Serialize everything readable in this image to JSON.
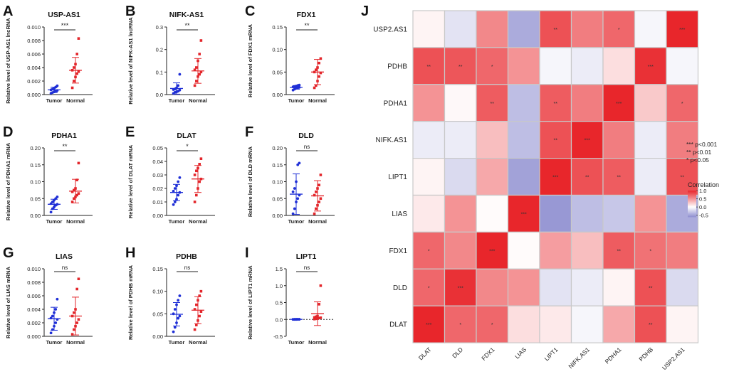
{
  "figure": {
    "scatter_panels": [
      {
        "letter": "A",
        "title": "USP-AS1",
        "ylabel": "Relative level of USP-AS1 lncRNA",
        "ticks": [
          "0.000",
          "0.002",
          "0.004",
          "0.006",
          "0.008",
          "0.010"
        ],
        "sig": "***"
      },
      {
        "letter": "B",
        "title": "NIFK-AS1",
        "ylabel": "Relative level of NIFK-AS1 lncRNA",
        "ticks": [
          "0.0",
          "0.1",
          "0.2",
          "0.3"
        ],
        "sig": "**"
      },
      {
        "letter": "C",
        "title": "FDX1",
        "ylabel": "Relative level of FDX1 mRNA",
        "ticks": [
          "0.00",
          "0.05",
          "0.10",
          "0.15"
        ],
        "sig": "**"
      },
      {
        "letter": "D",
        "title": "PDHA1",
        "ylabel": "Relative level of PDHA1 mRNA",
        "ticks": [
          "0.00",
          "0.05",
          "0.10",
          "0.15",
          "0.20"
        ],
        "sig": "**"
      },
      {
        "letter": "E",
        "title": "DLAT",
        "ylabel": "Relative level of DLAT mRNA",
        "ticks": [
          "0.00",
          "0.01",
          "0.02",
          "0.03",
          "0.04",
          "0.05"
        ],
        "sig": "*"
      },
      {
        "letter": "F",
        "title": "DLD",
        "ylabel": "Relative level of DLD mRNA",
        "ticks": [
          "0.00",
          "0.05",
          "0.10",
          "0.15",
          "0.20"
        ],
        "sig": "ns"
      },
      {
        "letter": "G",
        "title": "LIAS",
        "ylabel": "Relative level of LIAS mRNA",
        "ticks": [
          "0.000",
          "0.002",
          "0.004",
          "0.006",
          "0.008",
          "0.010"
        ],
        "sig": "ns"
      },
      {
        "letter": "H",
        "title": "PDHB",
        "ylabel": "Relative level of PDHB mRNA",
        "ticks": [
          "0.00",
          "0.05",
          "0.10",
          "0.15"
        ],
        "sig": "ns"
      },
      {
        "letter": "I",
        "title": "LIPT1",
        "ylabel": "Relative level of LIPT1 mRNA",
        "ticks": [
          "-0.5",
          "0.0",
          "0.5",
          "1.0",
          "1.5"
        ],
        "sig": "ns"
      }
    ],
    "group_labels": [
      "Tumor",
      "Normal"
    ],
    "heatmap_letter": "J",
    "sig_legend": [
      "*** p<0.001",
      "** p<0.01",
      "* p<0.05"
    ],
    "colorbar": {
      "title": "Correlation",
      "ticks": [
        "1.0",
        "0.5",
        "0.0",
        "-0.5"
      ]
    },
    "colors": {
      "tumor": "#1f2fd6",
      "normal": "#e3262b",
      "heat_high": "#e8262b",
      "heat_low": "#8f8fd0",
      "grid": "#c8c8c8"
    }
  },
  "chart_data": [
    {
      "type": "scatter",
      "panel": "A",
      "title": "USP-AS1",
      "ylabel": "Relative level of USP-AS1 lncRNA",
      "ylim": [
        0,
        0.01
      ],
      "series": [
        {
          "name": "Tumor",
          "values": [
            0.0002,
            0.0003,
            0.0004,
            0.0005,
            0.0006,
            0.0007,
            0.0008,
            0.0009,
            0.0011,
            0.0013
          ],
          "mean": 0.0007,
          "sd": 0.0004
        },
        {
          "name": "Normal",
          "values": [
            0.001,
            0.002,
            0.0026,
            0.0031,
            0.0034,
            0.0036,
            0.004,
            0.0045,
            0.006,
            0.0083
          ],
          "mean": 0.0036,
          "sd": 0.0019
        }
      ],
      "significance": "***"
    },
    {
      "type": "scatter",
      "panel": "B",
      "title": "NIFK-AS1",
      "ylabel": "Relative level of NIFK-AS1 lncRNA",
      "ylim": [
        0,
        0.3
      ],
      "series": [
        {
          "name": "Tumor",
          "values": [
            0.005,
            0.01,
            0.012,
            0.015,
            0.02,
            0.022,
            0.025,
            0.03,
            0.04,
            0.09
          ],
          "mean": 0.027,
          "sd": 0.025
        },
        {
          "name": "Normal",
          "values": [
            0.04,
            0.06,
            0.08,
            0.09,
            0.1,
            0.11,
            0.12,
            0.15,
            0.18,
            0.24
          ],
          "mean": 0.105,
          "sd": 0.055
        }
      ],
      "significance": "**"
    },
    {
      "type": "scatter",
      "panel": "C",
      "title": "FDX1",
      "ylabel": "Relative level of FDX1 mRNA",
      "ylim": [
        0,
        0.15
      ],
      "series": [
        {
          "name": "Tumor",
          "values": [
            0.01,
            0.012,
            0.014,
            0.015,
            0.016,
            0.017,
            0.018,
            0.019,
            0.02,
            0.021
          ],
          "mean": 0.016,
          "sd": 0.004
        },
        {
          "name": "Normal",
          "values": [
            0.015,
            0.02,
            0.03,
            0.04,
            0.048,
            0.05,
            0.055,
            0.06,
            0.07,
            0.08
          ],
          "mean": 0.05,
          "sd": 0.028
        }
      ],
      "significance": "**"
    },
    {
      "type": "scatter",
      "panel": "D",
      "title": "PDHA1",
      "ylabel": "Relative level of PDHA1 mRNA",
      "ylim": [
        0,
        0.2
      ],
      "series": [
        {
          "name": "Tumor",
          "values": [
            0.01,
            0.02,
            0.025,
            0.03,
            0.033,
            0.035,
            0.04,
            0.045,
            0.05,
            0.055
          ],
          "mean": 0.033,
          "sd": 0.015
        },
        {
          "name": "Normal",
          "values": [
            0.04,
            0.05,
            0.055,
            0.06,
            0.065,
            0.07,
            0.075,
            0.08,
            0.105,
            0.155
          ],
          "mean": 0.072,
          "sd": 0.035
        }
      ],
      "significance": "**"
    },
    {
      "type": "scatter",
      "panel": "E",
      "title": "DLAT",
      "ylabel": "Relative level of DLAT mRNA",
      "ylim": [
        0,
        0.05
      ],
      "series": [
        {
          "name": "Tumor",
          "values": [
            0.008,
            0.01,
            0.012,
            0.015,
            0.017,
            0.018,
            0.02,
            0.022,
            0.025,
            0.028
          ],
          "mean": 0.017,
          "sd": 0.006
        },
        {
          "name": "Normal",
          "values": [
            0.01,
            0.015,
            0.02,
            0.025,
            0.027,
            0.03,
            0.033,
            0.035,
            0.038,
            0.042
          ],
          "mean": 0.027,
          "sd": 0.01
        }
      ],
      "significance": "*"
    },
    {
      "type": "scatter",
      "panel": "F",
      "title": "DLD",
      "ylabel": "Relative level of DLD mRNA",
      "ylim": [
        0,
        0.2
      ],
      "series": [
        {
          "name": "Tumor",
          "values": [
            0.005,
            0.02,
            0.04,
            0.05,
            0.06,
            0.07,
            0.08,
            0.1,
            0.15,
            0.155
          ],
          "mean": 0.063,
          "sd": 0.06
        },
        {
          "name": "Normal",
          "values": [
            0.005,
            0.02,
            0.03,
            0.04,
            0.05,
            0.06,
            0.07,
            0.08,
            0.09,
            0.12
          ],
          "mean": 0.058,
          "sd": 0.045
        }
      ],
      "significance": "ns"
    },
    {
      "type": "scatter",
      "panel": "G",
      "title": "LIAS",
      "ylabel": "Relative level of LIAS mRNA",
      "ylim": [
        0,
        0.01
      ],
      "series": [
        {
          "name": "Tumor",
          "values": [
            0.0005,
            0.001,
            0.0015,
            0.002,
            0.0025,
            0.0027,
            0.003,
            0.0035,
            0.004,
            0.0055
          ],
          "mean": 0.0026,
          "sd": 0.0017
        },
        {
          "name": "Normal",
          "values": [
            0.0003,
            0.001,
            0.0015,
            0.002,
            0.0025,
            0.003,
            0.0035,
            0.004,
            0.007,
            0.0085
          ],
          "mean": 0.003,
          "sd": 0.0028
        }
      ],
      "significance": "ns"
    },
    {
      "type": "scatter",
      "panel": "H",
      "title": "PDHB",
      "ylabel": "Relative level of PDHB mRNA",
      "ylim": [
        0,
        0.15
      ],
      "series": [
        {
          "name": "Tumor",
          "values": [
            0.01,
            0.02,
            0.03,
            0.04,
            0.045,
            0.05,
            0.06,
            0.07,
            0.08,
            0.09
          ],
          "mean": 0.049,
          "sd": 0.026
        },
        {
          "name": "Normal",
          "values": [
            0.015,
            0.025,
            0.035,
            0.045,
            0.055,
            0.06,
            0.07,
            0.08,
            0.09,
            0.1
          ],
          "mean": 0.058,
          "sd": 0.03
        }
      ],
      "significance": "ns"
    },
    {
      "type": "scatter",
      "panel": "I",
      "title": "LIPT1",
      "ylabel": "Relative level of LIPT1 mRNA",
      "ylim": [
        -0.5,
        1.5
      ],
      "series": [
        {
          "name": "Tumor",
          "values": [
            0.0,
            0.001,
            0.001,
            0.002,
            0.002,
            0.003,
            0.003,
            0.004,
            0.004,
            0.005
          ],
          "mean": 0.003,
          "sd": 0.002
        },
        {
          "name": "Normal",
          "values": [
            0.01,
            0.02,
            0.03,
            0.04,
            0.05,
            0.06,
            0.08,
            0.1,
            0.45,
            1.0
          ],
          "mean": 0.17,
          "sd": 0.35
        }
      ],
      "significance": "ns"
    },
    {
      "type": "heatmap",
      "panel": "J",
      "rows": [
        "USP2.AS1",
        "PDHB",
        "PDHA1",
        "NIFK.AS1",
        "LIPT1",
        "LIAS",
        "FDX1",
        "DLD",
        "DLAT"
      ],
      "columns": [
        "DLAT",
        "DLD",
        "FDX1",
        "LIAS",
        "LIPT1",
        "NIFK.AS1",
        "PDHA1",
        "PDHB",
        "USP2.AS1"
      ],
      "values": [
        [
          0.05,
          -0.15,
          0.55,
          -0.45,
          0.8,
          0.6,
          0.7,
          -0.05,
          1.0
        ],
        [
          0.8,
          0.78,
          0.7,
          0.5,
          -0.05,
          -0.1,
          0.15,
          0.95,
          -0.05
        ],
        [
          0.5,
          0.03,
          0.75,
          -0.35,
          0.75,
          0.6,
          1.0,
          0.25,
          0.7
        ],
        [
          -0.1,
          -0.1,
          0.3,
          -0.35,
          0.8,
          1.0,
          0.6,
          -0.1,
          0.6
        ],
        [
          0.05,
          -0.2,
          0.4,
          -0.5,
          1.0,
          0.8,
          0.75,
          -0.1,
          0.8
        ],
        [
          0.1,
          0.5,
          0.02,
          1.0,
          -0.55,
          -0.35,
          -0.3,
          0.5,
          -0.45
        ],
        [
          0.7,
          0.55,
          1.0,
          0.02,
          0.45,
          0.3,
          0.75,
          0.65,
          0.6
        ],
        [
          0.7,
          0.95,
          0.55,
          0.5,
          -0.15,
          -0.1,
          0.05,
          0.8,
          -0.2
        ],
        [
          1.0,
          0.7,
          0.7,
          0.15,
          0.1,
          -0.05,
          0.4,
          0.8,
          0.05
        ]
      ],
      "stars": [
        [
          "",
          "",
          "",
          "",
          "**",
          "",
          "*",
          "",
          "***"
        ],
        [
          "**",
          "**",
          "*",
          "",
          "",
          "",
          "",
          "***",
          ""
        ],
        [
          "",
          "",
          "**",
          "",
          "**",
          "",
          "***",
          "",
          "*"
        ],
        [
          "",
          "",
          "",
          "",
          "**",
          "***",
          "",
          "",
          ""
        ],
        [
          "",
          "",
          "",
          "",
          "***",
          "**",
          "**",
          "",
          "**"
        ],
        [
          "",
          "",
          "",
          "***",
          "",
          "",
          "",
          "",
          ""
        ],
        [
          "*",
          "",
          "***",
          "",
          "",
          "",
          "**",
          "*",
          ""
        ],
        [
          "*",
          "***",
          "",
          "",
          "",
          "",
          "",
          "**",
          ""
        ],
        [
          "***",
          "*",
          "*",
          "",
          "",
          "",
          "",
          "**",
          ""
        ]
      ],
      "colorbar_range": [
        -0.6,
        1.0
      ]
    }
  ]
}
